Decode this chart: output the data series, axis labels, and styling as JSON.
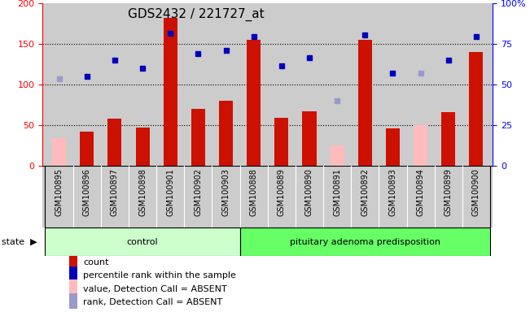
{
  "title": "GDS2432 / 221727_at",
  "samples": [
    "GSM100895",
    "GSM100896",
    "GSM100897",
    "GSM100898",
    "GSM100901",
    "GSM100902",
    "GSM100903",
    "GSM100888",
    "GSM100889",
    "GSM100890",
    "GSM100891",
    "GSM100892",
    "GSM100893",
    "GSM100894",
    "GSM100899",
    "GSM100900"
  ],
  "bar_values": [
    null,
    42,
    58,
    47,
    182,
    70,
    80,
    155,
    59,
    67,
    null,
    155,
    46,
    null,
    66,
    140
  ],
  "bar_absent_values": [
    34,
    null,
    null,
    null,
    null,
    null,
    null,
    null,
    null,
    null,
    25,
    null,
    null,
    50,
    null,
    null
  ],
  "blue_values": [
    null,
    110,
    130,
    120,
    163,
    138,
    142,
    159,
    123,
    133,
    null,
    161,
    114,
    null,
    130,
    159
  ],
  "blue_absent_values": [
    107,
    null,
    null,
    null,
    null,
    null,
    null,
    null,
    null,
    null,
    80,
    null,
    null,
    114,
    null,
    null
  ],
  "ylim_left": [
    0,
    200
  ],
  "ylim_right": [
    0,
    100
  ],
  "yticks_left": [
    0,
    50,
    100,
    150,
    200
  ],
  "yticks_right": [
    0,
    25,
    50,
    75,
    100
  ],
  "ytick_right_labels": [
    "0",
    "25",
    "50",
    "75",
    "100%"
  ],
  "bar_color": "#cc1100",
  "bar_absent_color": "#ffbbbb",
  "blue_color": "#0000bb",
  "blue_absent_color": "#9999cc",
  "plot_bg_color": "#cccccc",
  "xtick_bg_color": "#cccccc",
  "groups": [
    {
      "label": "control",
      "start": 0,
      "end": 6,
      "color": "#ccffcc"
    },
    {
      "label": "pituitary adenoma predisposition",
      "start": 7,
      "end": 15,
      "color": "#66ff66"
    }
  ],
  "legend_items": [
    {
      "label": "count",
      "color": "#cc1100"
    },
    {
      "label": "percentile rank within the sample",
      "color": "#0000bb"
    },
    {
      "label": "value, Detection Call = ABSENT",
      "color": "#ffbbbb"
    },
    {
      "label": "rank, Detection Call = ABSENT",
      "color": "#9999cc"
    }
  ],
  "title_fontsize": 11,
  "tick_fontsize": 7,
  "legend_fontsize": 8,
  "group_fontsize": 8,
  "bar_width": 0.5
}
